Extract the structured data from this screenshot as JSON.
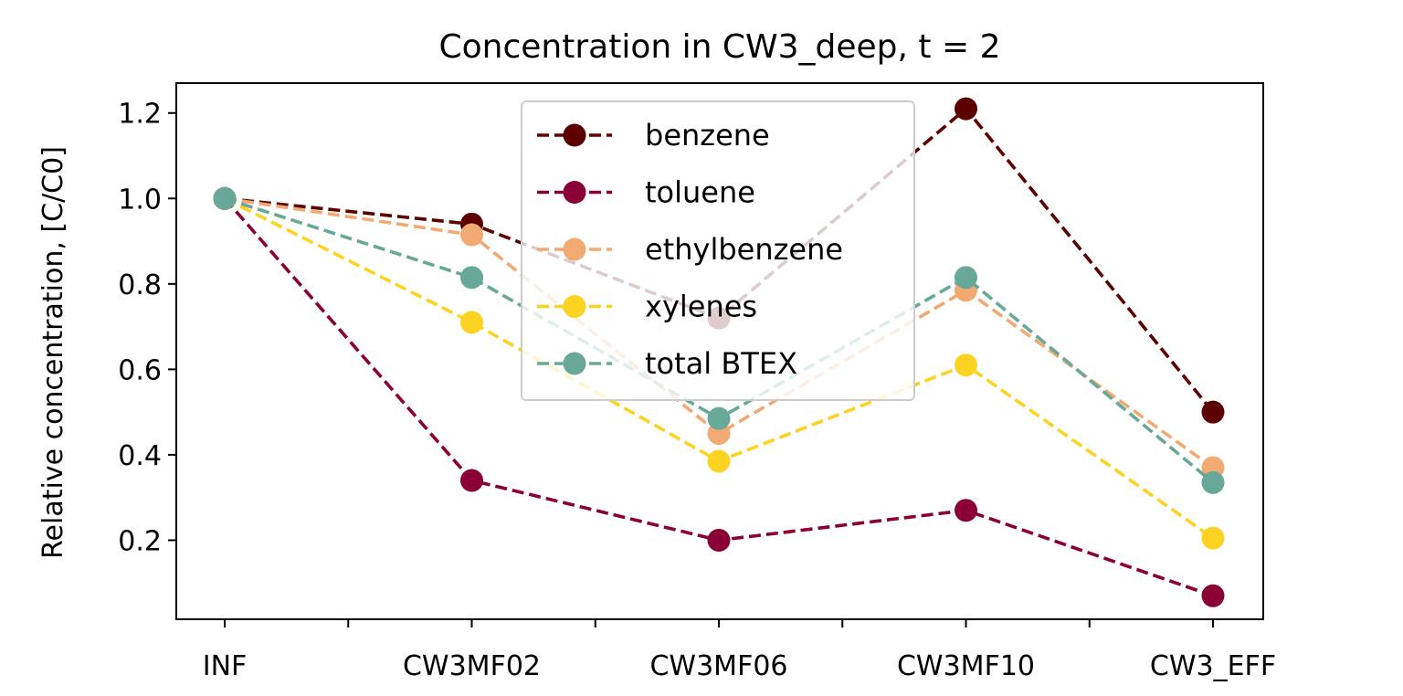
{
  "chart_data": {
    "type": "line",
    "title": "Concentration in CW3_deep, t = 2",
    "xlabel": "",
    "ylabel": "Relative concentration, [C/C0]",
    "categories": [
      "INF",
      "CW3MF02",
      "CW3MF06",
      "CW3MF10",
      "CW3_EFF"
    ],
    "ylim": [
      0.015,
      1.27
    ],
    "yticks": [
      0.2,
      0.4,
      0.6,
      0.8,
      1.0,
      1.2
    ],
    "ytick_labels": [
      "0.2",
      "0.4",
      "0.6",
      "0.8",
      "1.0",
      "1.2"
    ],
    "grid": false,
    "legend": "top-center",
    "series": [
      {
        "name": "benzene",
        "color": "#5c0000",
        "values": [
          1.0,
          0.94,
          0.72,
          1.21,
          0.5
        ]
      },
      {
        "name": "toluene",
        "color": "#8a0036",
        "values": [
          1.0,
          0.34,
          0.2,
          0.27,
          0.07
        ]
      },
      {
        "name": "ethylbenzene",
        "color": "#f0aa72",
        "values": [
          1.0,
          0.915,
          0.45,
          0.785,
          0.37
        ]
      },
      {
        "name": "xylenes",
        "color": "#fdd322",
        "values": [
          1.0,
          0.71,
          0.385,
          0.61,
          0.205
        ]
      },
      {
        "name": "total BTEX",
        "color": "#67a899",
        "values": [
          1.0,
          0.815,
          0.485,
          0.815,
          0.335
        ]
      }
    ]
  }
}
